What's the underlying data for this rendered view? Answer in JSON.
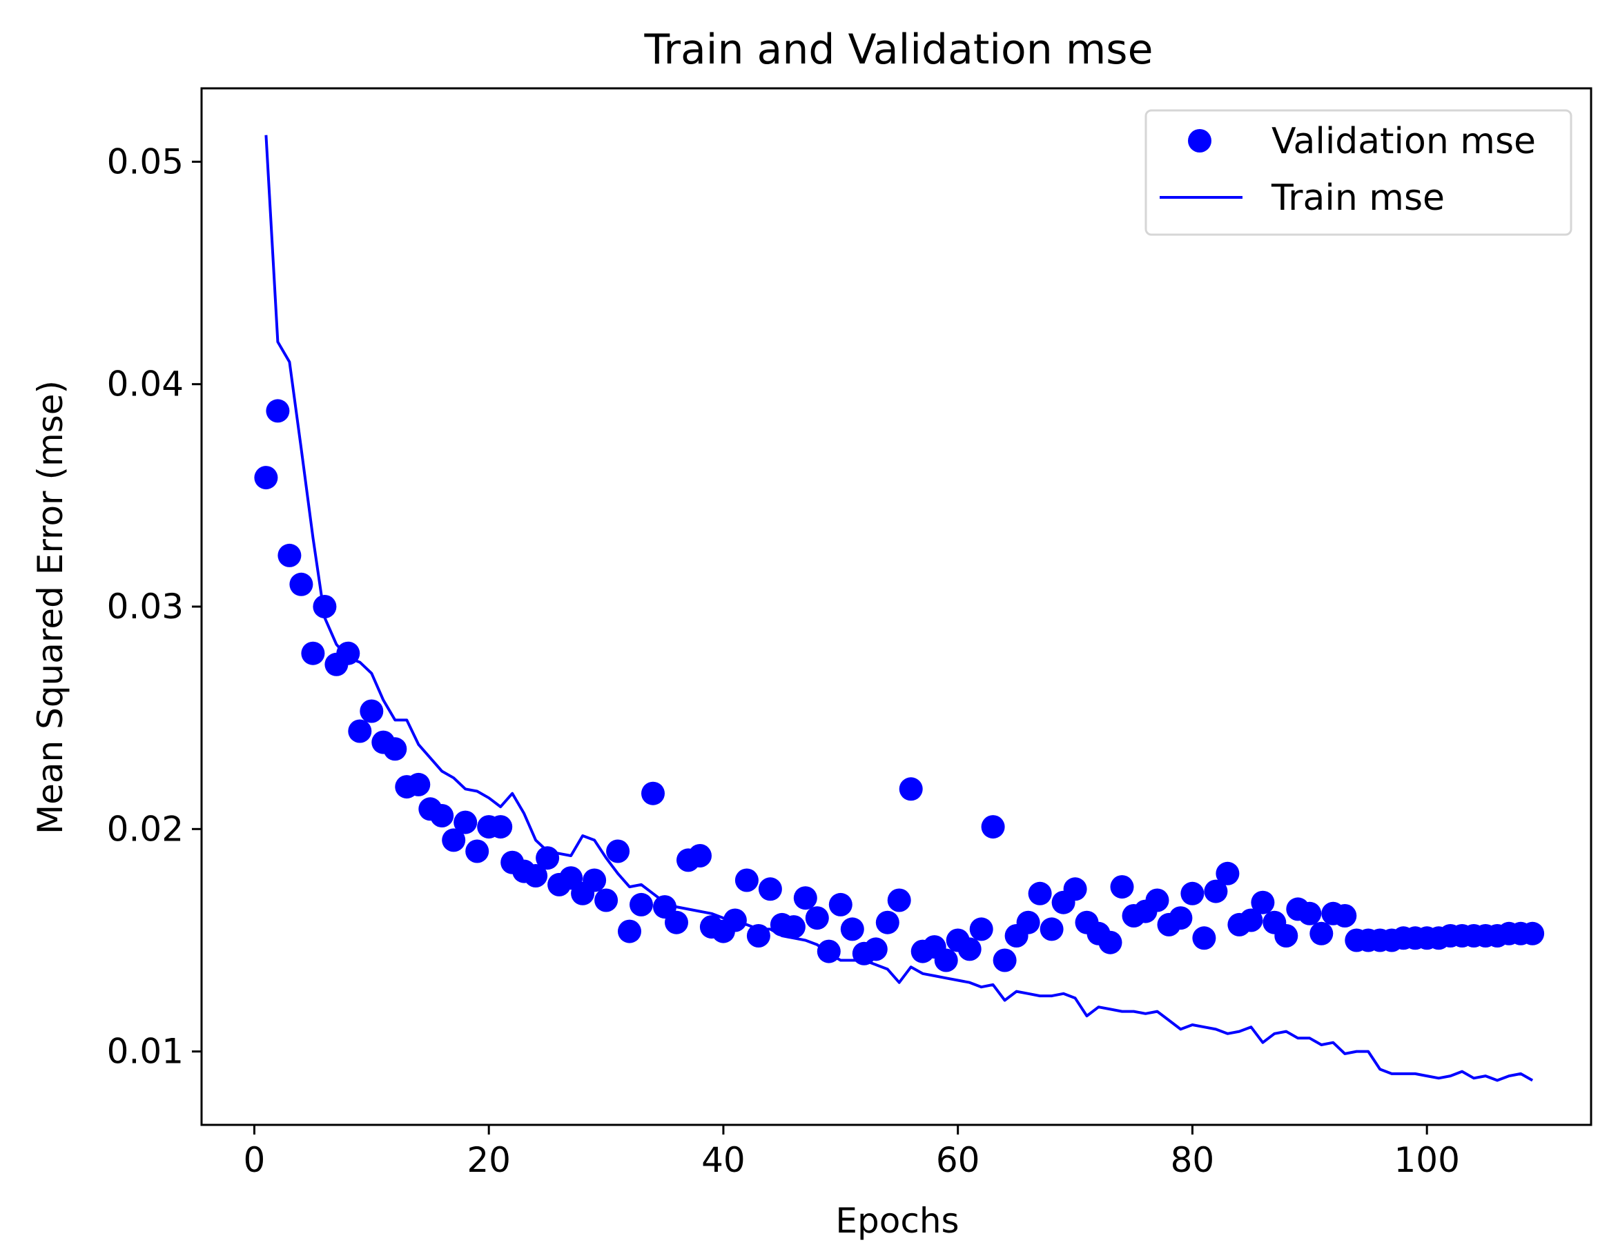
{
  "chart_data": {
    "type": "line",
    "title": "Train and Validation mse",
    "xlabel": "Epochs",
    "ylabel": "Mean Squared Error (mse)",
    "xlim": [
      -4.5,
      114
    ],
    "ylim": [
      0.0067,
      0.0533
    ],
    "xticks": [
      0,
      20,
      40,
      60,
      80,
      100
    ],
    "yticks": [
      0.01,
      0.02,
      0.03,
      0.04,
      0.05
    ],
    "xtick_labels": [
      "0",
      "20",
      "40",
      "60",
      "80",
      "100"
    ],
    "ytick_labels": [
      "0.01",
      "0.02",
      "0.03",
      "0.04",
      "0.05"
    ],
    "grid": false,
    "legend_position": "top-right",
    "series": [
      {
        "name": "Validation mse",
        "style": "markers",
        "color": "#0000ff",
        "x": [
          1,
          2,
          3,
          4,
          5,
          6,
          7,
          8,
          9,
          10,
          11,
          12,
          13,
          14,
          15,
          16,
          17,
          18,
          19,
          20,
          21,
          22,
          23,
          24,
          25,
          26,
          27,
          28,
          29,
          30,
          31,
          32,
          33,
          34,
          35,
          36,
          37,
          38,
          39,
          40,
          41,
          42,
          43,
          44,
          45,
          46,
          47,
          48,
          49,
          50,
          51,
          52,
          53,
          54,
          55,
          56,
          57,
          58,
          59,
          60,
          61,
          62,
          63,
          64,
          65,
          66,
          67,
          68,
          69,
          70,
          71,
          72,
          73,
          74,
          75,
          76,
          77,
          78,
          79,
          80,
          81,
          82,
          83,
          84,
          85,
          86,
          87,
          88,
          89,
          90,
          91,
          92,
          93,
          94,
          95,
          96,
          97,
          98,
          99,
          100,
          101,
          102,
          103,
          104,
          105,
          106,
          107,
          108,
          109
        ],
        "values": [
          0.0358,
          0.0388,
          0.0323,
          0.031,
          0.0279,
          0.03,
          0.0274,
          0.0279,
          0.0244,
          0.0253,
          0.0239,
          0.0236,
          0.0219,
          0.022,
          0.0209,
          0.0206,
          0.0195,
          0.0203,
          0.019,
          0.0201,
          0.0201,
          0.0185,
          0.0181,
          0.0179,
          0.0187,
          0.0175,
          0.0178,
          0.0171,
          0.0177,
          0.0168,
          0.019,
          0.0154,
          0.0166,
          0.0216,
          0.0165,
          0.0158,
          0.0186,
          0.0188,
          0.0156,
          0.0154,
          0.0159,
          0.0177,
          0.0152,
          0.0173,
          0.0157,
          0.0156,
          0.0169,
          0.016,
          0.0145,
          0.0166,
          0.0155,
          0.0144,
          0.0146,
          0.0158,
          0.0168,
          0.0218,
          0.0145,
          0.0147,
          0.0141,
          0.015,
          0.0146,
          0.0155,
          0.0201,
          0.0141,
          0.0152,
          0.0158,
          0.0171,
          0.0155,
          0.0167,
          0.0173,
          0.0158,
          0.0153,
          0.0149,
          0.0174,
          0.0161,
          0.0163,
          0.0168,
          0.0157,
          0.016,
          0.0171,
          0.0151,
          0.0172,
          0.018,
          0.0157,
          0.0159,
          0.0167,
          0.0158,
          0.0152,
          0.0164,
          0.0162,
          0.0153,
          0.0162,
          0.0161,
          0.015,
          0.015,
          0.015,
          0.015,
          0.0151,
          0.0151,
          0.0151,
          0.0151,
          0.0152,
          0.0152,
          0.0152,
          0.0152,
          0.0152,
          0.0153,
          0.0153,
          0.0153
        ]
      },
      {
        "name": "Train mse",
        "style": "line",
        "color": "#0000ff",
        "x": [
          1,
          2,
          3,
          4,
          5,
          6,
          7,
          8,
          9,
          10,
          11,
          12,
          13,
          14,
          15,
          16,
          17,
          18,
          19,
          20,
          21,
          22,
          23,
          24,
          25,
          26,
          27,
          28,
          29,
          30,
          31,
          32,
          33,
          34,
          35,
          36,
          37,
          38,
          39,
          40,
          41,
          42,
          43,
          44,
          45,
          46,
          47,
          48,
          49,
          50,
          51,
          52,
          53,
          54,
          55,
          56,
          57,
          58,
          59,
          60,
          61,
          62,
          63,
          64,
          65,
          66,
          67,
          68,
          69,
          70,
          71,
          72,
          73,
          74,
          75,
          76,
          77,
          78,
          79,
          80,
          81,
          82,
          83,
          84,
          85,
          86,
          87,
          88,
          89,
          90,
          91,
          92,
          93,
          94,
          95,
          96,
          97,
          98,
          99,
          100,
          101,
          102,
          103,
          104,
          105,
          106,
          107,
          108,
          109
        ],
        "values": [
          0.0512,
          0.0419,
          0.041,
          0.0371,
          0.0331,
          0.0295,
          0.0283,
          0.0277,
          0.0275,
          0.027,
          0.0258,
          0.0249,
          0.0249,
          0.0238,
          0.0232,
          0.0226,
          0.0223,
          0.0218,
          0.0217,
          0.0214,
          0.021,
          0.0216,
          0.0207,
          0.0195,
          0.019,
          0.0189,
          0.0188,
          0.0197,
          0.0195,
          0.0187,
          0.018,
          0.0174,
          0.0175,
          0.0171,
          0.0167,
          0.0165,
          0.0164,
          0.0163,
          0.0162,
          0.016,
          0.0158,
          0.0157,
          0.0155,
          0.0155,
          0.0152,
          0.0151,
          0.015,
          0.0148,
          0.0144,
          0.0141,
          0.0141,
          0.0141,
          0.0139,
          0.0137,
          0.0131,
          0.0138,
          0.0135,
          0.0134,
          0.0133,
          0.0132,
          0.0131,
          0.0129,
          0.013,
          0.0123,
          0.0127,
          0.0126,
          0.0125,
          0.0125,
          0.0126,
          0.0124,
          0.0116,
          0.012,
          0.0119,
          0.0118,
          0.0118,
          0.0117,
          0.0118,
          0.0114,
          0.011,
          0.0112,
          0.0111,
          0.011,
          0.0108,
          0.0109,
          0.0111,
          0.0104,
          0.0108,
          0.0109,
          0.0106,
          0.0106,
          0.0103,
          0.0104,
          0.0099,
          0.01,
          0.01,
          0.0092,
          0.009,
          0.009,
          0.009,
          0.0089,
          0.0088,
          0.0089,
          0.0091,
          0.0088,
          0.0089,
          0.0087,
          0.0089,
          0.009,
          0.0087
        ]
      }
    ]
  }
}
